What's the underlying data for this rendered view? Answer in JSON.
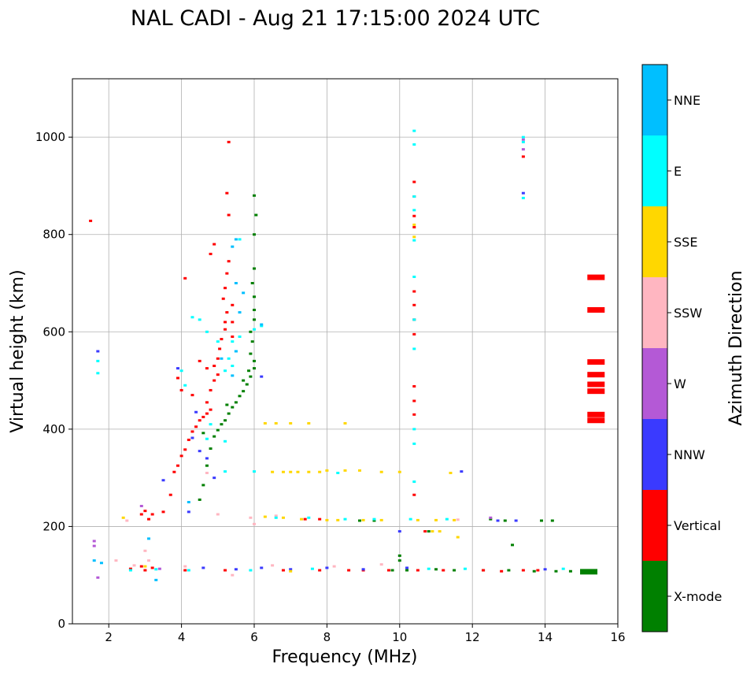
{
  "chart_data": {
    "type": "scatter",
    "title": "NAL CADI - Aug 21 17:15:00 2024 UTC",
    "xlabel": "Frequency (MHz)",
    "ylabel": "Virtual height (km)",
    "xlim": [
      1,
      16
    ],
    "ylim": [
      0,
      1120
    ],
    "xticks": [
      2,
      4,
      6,
      8,
      10,
      12,
      14,
      16
    ],
    "yticks": [
      0,
      200,
      400,
      600,
      800,
      1000
    ],
    "grid": true,
    "colorbar": {
      "title": "Azimuth Direction",
      "categories": [
        "X-mode",
        "Vertical",
        "NNW",
        "W",
        "SSW",
        "SSE",
        "E",
        "NNE"
      ],
      "colors": [
        "#008000",
        "#ff0000",
        "#3a3aff",
        "#b459d6",
        "#ffb6c1",
        "#ffd700",
        "#00ffff",
        "#00bfff"
      ]
    },
    "series": [
      {
        "name": "X-mode",
        "points": [
          [
            4.5,
            255
          ],
          [
            4.6,
            285
          ],
          [
            4.7,
            325
          ],
          [
            4.8,
            360
          ],
          [
            4.9,
            385
          ],
          [
            5.0,
            398
          ],
          [
            5.1,
            410
          ],
          [
            5.2,
            418
          ],
          [
            5.3,
            432
          ],
          [
            5.4,
            445
          ],
          [
            5.5,
            455
          ],
          [
            5.6,
            468
          ],
          [
            5.7,
            478
          ],
          [
            5.8,
            492
          ],
          [
            5.9,
            508
          ],
          [
            6.0,
            525
          ],
          [
            6.0,
            540
          ],
          [
            5.9,
            555
          ],
          [
            5.95,
            580
          ],
          [
            5.9,
            600
          ],
          [
            6.0,
            625
          ],
          [
            6.0,
            645
          ],
          [
            6.0,
            672
          ],
          [
            5.95,
            700
          ],
          [
            6.0,
            730
          ],
          [
            6.0,
            800
          ],
          [
            6.05,
            840
          ],
          [
            6.0,
            880
          ],
          [
            4.6,
            392
          ],
          [
            5.25,
            450
          ],
          [
            5.7,
            500
          ],
          [
            5.85,
            520
          ],
          [
            9.8,
            110
          ],
          [
            10.2,
            110
          ],
          [
            11.0,
            112
          ],
          [
            11.5,
            110
          ],
          [
            12.3,
            110
          ],
          [
            13.0,
            110
          ],
          [
            13.7,
            108
          ],
          [
            14.3,
            108
          ],
          [
            14.7,
            108
          ],
          [
            15.2,
            107
          ],
          [
            10.0,
            130
          ],
          [
            10.0,
            140
          ],
          [
            13.1,
            162
          ],
          [
            12.9,
            212
          ],
          [
            13.9,
            212
          ],
          [
            14.2,
            212
          ],
          [
            8.9,
            212
          ],
          [
            9.3,
            212
          ],
          [
            10.8,
            190
          ],
          [
            12.5,
            215
          ]
        ]
      },
      {
        "name": "Vertical",
        "points": [
          [
            1.5,
            828
          ],
          [
            2.6,
            113
          ],
          [
            2.9,
            118
          ],
          [
            3.2,
            115
          ],
          [
            3.1,
            215
          ],
          [
            3.2,
            225
          ],
          [
            3.5,
            230
          ],
          [
            3.7,
            265
          ],
          [
            3.8,
            312
          ],
          [
            3.9,
            325
          ],
          [
            4.0,
            345
          ],
          [
            4.1,
            358
          ],
          [
            4.2,
            378
          ],
          [
            4.3,
            395
          ],
          [
            4.4,
            405
          ],
          [
            4.5,
            418
          ],
          [
            4.6,
            425
          ],
          [
            4.7,
            432
          ],
          [
            4.8,
            440
          ],
          [
            4.7,
            455
          ],
          [
            4.8,
            480
          ],
          [
            4.9,
            500
          ],
          [
            5.0,
            512
          ],
          [
            4.9,
            530
          ],
          [
            5.0,
            545
          ],
          [
            5.05,
            565
          ],
          [
            5.1,
            585
          ],
          [
            5.2,
            605
          ],
          [
            5.2,
            620
          ],
          [
            5.25,
            640
          ],
          [
            5.15,
            668
          ],
          [
            5.2,
            690
          ],
          [
            5.25,
            720
          ],
          [
            5.3,
            745
          ],
          [
            4.8,
            760
          ],
          [
            4.9,
            780
          ],
          [
            5.3,
            840
          ],
          [
            5.25,
            885
          ],
          [
            5.3,
            990
          ],
          [
            4.1,
            710
          ],
          [
            4.0,
            480
          ],
          [
            3.9,
            505
          ],
          [
            4.3,
            470
          ],
          [
            4.7,
            525
          ],
          [
            4.5,
            540
          ],
          [
            5.4,
            590
          ],
          [
            5.4,
            620
          ],
          [
            5.4,
            655
          ],
          [
            10.4,
            908
          ],
          [
            10.4,
            878
          ],
          [
            10.4,
            838
          ],
          [
            10.4,
            815
          ],
          [
            10.4,
            683
          ],
          [
            10.4,
            655
          ],
          [
            10.4,
            625
          ],
          [
            10.4,
            595
          ],
          [
            10.4,
            488
          ],
          [
            10.4,
            458
          ],
          [
            10.4,
            430
          ],
          [
            10.4,
            265
          ],
          [
            10.7,
            190
          ],
          [
            13.4,
            960
          ],
          [
            15.4,
            418
          ],
          [
            15.4,
            430
          ],
          [
            15.4,
            478
          ],
          [
            15.4,
            492
          ],
          [
            15.4,
            512
          ],
          [
            15.4,
            538
          ],
          [
            15.4,
            645
          ],
          [
            15.4,
            712
          ],
          [
            3.0,
            110
          ],
          [
            4.1,
            110
          ],
          [
            5.2,
            110
          ],
          [
            6.8,
            110
          ],
          [
            7.8,
            110
          ],
          [
            8.6,
            110
          ],
          [
            9.0,
            110
          ],
          [
            9.7,
            110
          ],
          [
            10.5,
            110
          ],
          [
            11.2,
            110
          ],
          [
            12.3,
            110
          ],
          [
            12.8,
            108
          ],
          [
            13.4,
            110
          ],
          [
            13.8,
            110
          ],
          [
            7.4,
            215
          ],
          [
            7.8,
            215
          ],
          [
            2.9,
            225
          ],
          [
            3.0,
            232
          ]
        ]
      },
      {
        "name": "NNW",
        "points": [
          [
            1.7,
            560
          ],
          [
            3.9,
            525
          ],
          [
            4.4,
            435
          ],
          [
            4.3,
            382
          ],
          [
            4.5,
            355
          ],
          [
            4.7,
            340
          ],
          [
            4.9,
            300
          ],
          [
            4.2,
            230
          ],
          [
            3.5,
            295
          ],
          [
            6.2,
            508
          ],
          [
            11.7,
            313
          ],
          [
            13.4,
            885
          ],
          [
            12.7,
            212
          ],
          [
            13.2,
            212
          ],
          [
            14.0,
            112
          ],
          [
            4.6,
            115
          ],
          [
            5.5,
            112
          ],
          [
            6.2,
            115
          ],
          [
            7.0,
            112
          ],
          [
            8.0,
            115
          ],
          [
            9.0,
            112
          ],
          [
            10.2,
            115
          ],
          [
            10.0,
            190
          ]
        ]
      },
      {
        "name": "W",
        "points": [
          [
            1.6,
            170
          ],
          [
            1.6,
            160
          ],
          [
            2.9,
            242
          ],
          [
            13.4,
            975
          ],
          [
            13.4,
            995
          ],
          [
            12.5,
            218
          ],
          [
            3.4,
            113
          ],
          [
            1.7,
            95
          ]
        ]
      },
      {
        "name": "SSW",
        "points": [
          [
            2.5,
            212
          ],
          [
            2.2,
            130
          ],
          [
            2.7,
            120
          ],
          [
            3.0,
            150
          ],
          [
            3.1,
            130
          ],
          [
            4.1,
            118
          ],
          [
            5.0,
            225
          ],
          [
            5.9,
            218
          ],
          [
            6.6,
            222
          ],
          [
            4.7,
            310
          ],
          [
            6.5,
            120
          ],
          [
            8.2,
            118
          ],
          [
            9.5,
            122
          ],
          [
            11.6,
            214
          ],
          [
            6.0,
            205
          ],
          [
            5.4,
            100
          ]
        ]
      },
      {
        "name": "SSE",
        "points": [
          [
            2.4,
            218
          ],
          [
            3.0,
            118
          ],
          [
            6.3,
            412
          ],
          [
            6.6,
            412
          ],
          [
            7.0,
            412
          ],
          [
            7.5,
            412
          ],
          [
            8.5,
            412
          ],
          [
            6.5,
            312
          ],
          [
            6.8,
            312
          ],
          [
            7.0,
            312
          ],
          [
            7.2,
            312
          ],
          [
            7.5,
            312
          ],
          [
            7.8,
            312
          ],
          [
            8.0,
            315
          ],
          [
            8.5,
            315
          ],
          [
            8.9,
            315
          ],
          [
            9.5,
            312
          ],
          [
            10.0,
            312
          ],
          [
            6.8,
            218
          ],
          [
            7.3,
            215
          ],
          [
            8.0,
            213
          ],
          [
            8.3,
            213
          ],
          [
            9.0,
            213
          ],
          [
            9.5,
            213
          ],
          [
            10.5,
            213
          ],
          [
            11.0,
            213
          ],
          [
            11.5,
            213
          ],
          [
            10.4,
            820
          ],
          [
            10.9,
            190
          ],
          [
            11.1,
            190
          ],
          [
            11.6,
            178
          ],
          [
            10.4,
            795
          ],
          [
            11.4,
            310
          ],
          [
            6.3,
            220
          ],
          [
            7.0,
            108
          ]
        ]
      },
      {
        "name": "E",
        "points": [
          [
            1.7,
            540
          ],
          [
            1.7,
            515
          ],
          [
            4.0,
            520
          ],
          [
            4.1,
            490
          ],
          [
            4.3,
            630
          ],
          [
            4.5,
            625
          ],
          [
            4.7,
            600
          ],
          [
            5.0,
            580
          ],
          [
            5.3,
            545
          ],
          [
            5.4,
            530
          ],
          [
            5.5,
            560
          ],
          [
            5.6,
            590
          ],
          [
            5.2,
            520
          ],
          [
            5.4,
            580
          ],
          [
            5.6,
            790
          ],
          [
            5.2,
            375
          ],
          [
            4.8,
            410
          ],
          [
            4.7,
            380
          ],
          [
            6.0,
            605
          ],
          [
            6.2,
            612
          ],
          [
            10.4,
            1013
          ],
          [
            10.4,
            985
          ],
          [
            10.4,
            878
          ],
          [
            10.4,
            850
          ],
          [
            10.4,
            788
          ],
          [
            10.4,
            713
          ],
          [
            10.4,
            625
          ],
          [
            10.4,
            565
          ],
          [
            10.4,
            400
          ],
          [
            10.4,
            370
          ],
          [
            10.4,
            292
          ],
          [
            13.4,
            875
          ],
          [
            13.4,
            1000
          ],
          [
            13.4,
            990
          ],
          [
            5.2,
            313
          ],
          [
            6.0,
            313
          ],
          [
            6.6,
            218
          ],
          [
            7.5,
            218
          ],
          [
            8.5,
            215
          ],
          [
            9.3,
            215
          ],
          [
            10.3,
            215
          ],
          [
            11.3,
            215
          ],
          [
            2.6,
            110
          ],
          [
            3.3,
            112
          ],
          [
            4.2,
            110
          ],
          [
            5.9,
            110
          ],
          [
            7.6,
            113
          ],
          [
            10.8,
            113
          ],
          [
            11.8,
            113
          ],
          [
            14.5,
            113
          ],
          [
            8.3,
            310
          ]
        ]
      },
      {
        "name": "NNE",
        "points": [
          [
            1.6,
            130
          ],
          [
            1.8,
            125
          ],
          [
            3.1,
            175
          ],
          [
            3.3,
            90
          ],
          [
            5.5,
            790
          ],
          [
            5.4,
            775
          ],
          [
            5.5,
            700
          ],
          [
            5.7,
            680
          ],
          [
            5.6,
            640
          ],
          [
            5.4,
            510
          ],
          [
            5.5,
            560
          ],
          [
            6.2,
            615
          ],
          [
            4.2,
            250
          ],
          [
            5.1,
            545
          ]
        ]
      }
    ]
  }
}
